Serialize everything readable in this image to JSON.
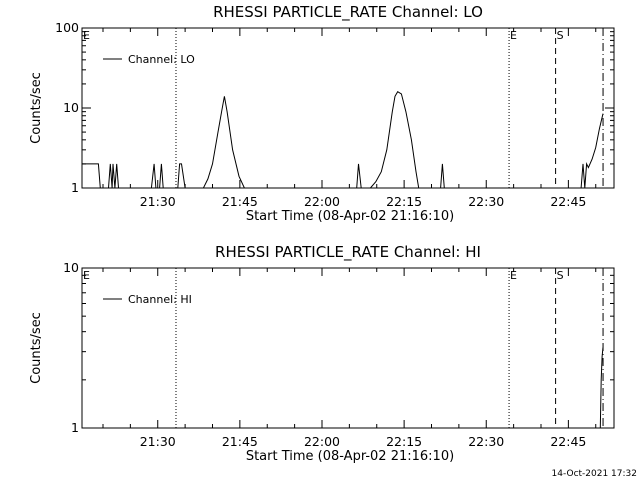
{
  "timestamp": "14-Oct-2021 17:32",
  "chart_data": [
    {
      "type": "line",
      "title": "RHESSI PARTICLE_RATE Channel: LO",
      "xlabel": "Start Time (08-Apr-02 21:16:10)",
      "ylabel": "Counts/sec",
      "yscale": "log",
      "ylim": [
        1,
        100
      ],
      "y_ticks": [
        1,
        10,
        100
      ],
      "y_tick_labels": [
        "1",
        "10",
        "100"
      ],
      "xlim": [
        "21:16:10",
        "22:53:20"
      ],
      "x_ticks": [
        "21:30",
        "21:45",
        "22:00",
        "22:15",
        "22:30",
        "22:45"
      ],
      "legend": {
        "label": "Channel: LO",
        "placement": "top-left"
      },
      "markers": [
        {
          "label": "E",
          "time": "21:16:10",
          "style": "dotted"
        },
        {
          "label": "",
          "time": "21:33:20",
          "style": "dotted"
        },
        {
          "label": "E",
          "time": "22:34:10",
          "style": "dotted"
        },
        {
          "label": "S",
          "time": "22:42:40",
          "style": "dashed"
        },
        {
          "label": "",
          "time": "22:51:20",
          "style": "dashdot"
        }
      ],
      "series": [
        {
          "x": [
            "21:16:10",
            "21:16:40",
            "21:19:10",
            "21:19:30",
            "21:19:50",
            "21:20:30",
            "21:21:00",
            "21:21:20",
            "21:21:40",
            "21:21:50",
            "21:22:10",
            "21:22:30",
            "21:22:50",
            "21:23:10",
            "21:23:30",
            "21:28:50",
            "21:29:20",
            "21:29:40",
            "21:30:00",
            "21:30:20",
            "21:30:40",
            "21:31:00",
            "21:31:20",
            "21:33:40",
            "21:34:00",
            "21:34:20",
            "21:35:00",
            "21:35:20",
            "21:36:30",
            "21:37:40",
            "21:38:20",
            "21:39:10",
            "21:40:00",
            "21:41:00",
            "21:41:40",
            "21:42:10",
            "21:42:40",
            "21:43:40",
            "21:44:50",
            "21:45:50",
            "22:06:20",
            "22:06:40",
            "22:07:10",
            "22:07:40",
            "22:08:10",
            "22:08:50",
            "22:09:50",
            "22:10:50",
            "22:11:50",
            "22:12:50",
            "22:13:20",
            "22:13:50",
            "22:14:30",
            "22:15:20",
            "22:16:20",
            "22:17:10",
            "22:17:40",
            "22:18:20",
            "22:19:20",
            "22:21:20",
            "22:21:40",
            "22:22:00",
            "22:22:20",
            "22:22:40",
            "22:47:20",
            "22:47:40",
            "22:48:00",
            "22:48:20",
            "22:48:40",
            "22:49:20",
            "22:50:00",
            "22:50:40",
            "22:51:20"
          ],
          "values": [
            2,
            2,
            2,
            1,
            1,
            1,
            1,
            2,
            1,
            2,
            1,
            2,
            1,
            1,
            1,
            1,
            2,
            1,
            1,
            1,
            2,
            1,
            1,
            1,
            2,
            2,
            1,
            1,
            1,
            1,
            1,
            1.3,
            2,
            5,
            9,
            14,
            9,
            3,
            1.4,
            1,
            1,
            2,
            1,
            1,
            1,
            1,
            1.2,
            1.6,
            3,
            9,
            14,
            16,
            15,
            9,
            4,
            1.6,
            1,
            1,
            1,
            1,
            1,
            2,
            1,
            1,
            1,
            2,
            1,
            2,
            1.8,
            2.3,
            3.2,
            5.5,
            8.5
          ]
        }
      ]
    },
    {
      "type": "line",
      "title": "RHESSI PARTICLE_RATE Channel: HI",
      "xlabel": "Start Time (08-Apr-02 21:16:10)",
      "ylabel": "Counts/sec",
      "yscale": "log",
      "ylim": [
        1,
        10
      ],
      "y_ticks": [
        1,
        10
      ],
      "y_tick_labels": [
        "1",
        "10"
      ],
      "xlim": [
        "21:16:10",
        "22:53:20"
      ],
      "x_ticks": [
        "21:30",
        "21:45",
        "22:00",
        "22:15",
        "22:30",
        "22:45"
      ],
      "legend": {
        "label": "Channel: HI",
        "placement": "top-left"
      },
      "markers": [
        {
          "label": "E",
          "time": "21:16:10",
          "style": "dotted"
        },
        {
          "label": "",
          "time": "21:33:20",
          "style": "dotted"
        },
        {
          "label": "E",
          "time": "22:34:10",
          "style": "dotted"
        },
        {
          "label": "S",
          "time": "22:42:40",
          "style": "dashed"
        },
        {
          "label": "",
          "time": "22:51:20",
          "style": "dashdot"
        }
      ],
      "series": [
        {
          "x": [
            "22:50:50",
            "22:51:00",
            "22:51:10",
            "22:51:20"
          ],
          "values": [
            1,
            2,
            2.8,
            3.2
          ]
        }
      ]
    }
  ]
}
